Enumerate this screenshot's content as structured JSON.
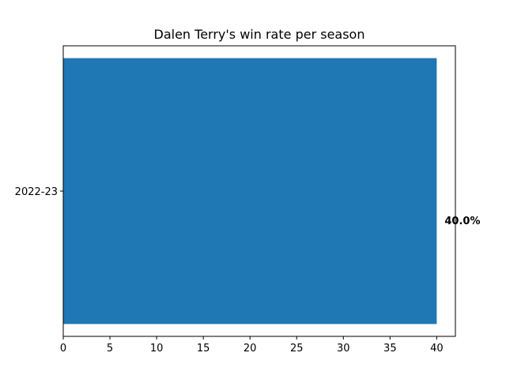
{
  "chart_data": {
    "type": "bar",
    "orientation": "horizontal",
    "title": "Dalen Terry's win rate per season",
    "xlabel": "",
    "ylabel": "",
    "categories": [
      "2022-23"
    ],
    "values": [
      40.0
    ],
    "data_labels": [
      "40.0%"
    ],
    "xlim": [
      0,
      42
    ],
    "x_ticks": [
      0,
      5,
      10,
      15,
      20,
      25,
      30,
      35,
      40
    ],
    "grid": false,
    "legend": "none",
    "colors": {
      "bar": "#1f77b4",
      "axis": "#000000",
      "text": "#000000",
      "background": "#ffffff"
    }
  }
}
